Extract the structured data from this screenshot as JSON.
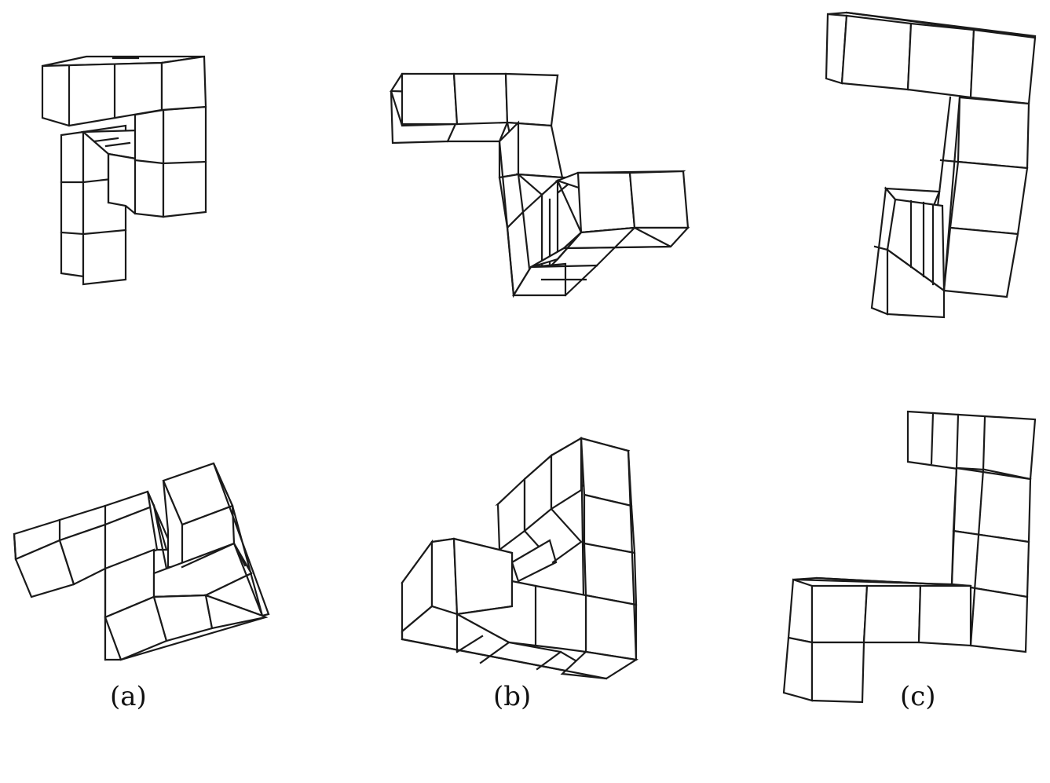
{
  "figure": {
    "labels": {
      "a": "(a)",
      "b": "(b)",
      "c": "(c)"
    },
    "pairs": [
      {
        "id": "a",
        "top": "cube-figure-a-top",
        "bottom": "cube-figure-a-bottom"
      },
      {
        "id": "b",
        "top": "cube-figure-b-top",
        "bottom": "cube-figure-b-bottom"
      },
      {
        "id": "c",
        "top": "cube-figure-c-top",
        "bottom": "cube-figure-c-bottom"
      }
    ],
    "colors": {
      "line": "#1a1a1a",
      "background": "#ffffff"
    }
  }
}
